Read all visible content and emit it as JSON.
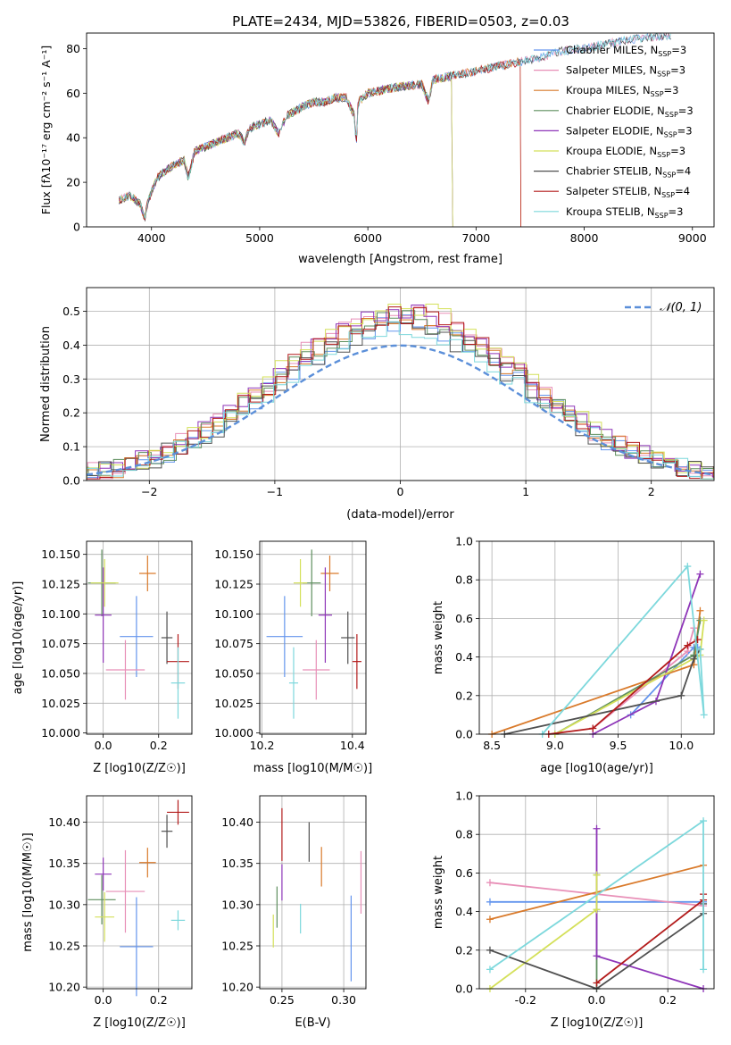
{
  "figure": {
    "title": "PLATE=2434, MJD=53826, FIBERID=0503, z=0.03"
  },
  "colors": {
    "chabrier_miles": "#6495ed",
    "salpeter_miles": "#e88fb7",
    "kroupa_miles": "#d97a2b",
    "chabrier_elodie": "#5f8f5f",
    "salpeter_elodie": "#8e35b8",
    "kroupa_elodie": "#d4e05a",
    "chabrier_stelib": "#505050",
    "salpeter_stelib": "#b31b1b",
    "kroupa_stelib": "#7dd8dc",
    "gaussian": "#5b8fd9"
  },
  "chart_data": [
    {
      "id": "spectrum",
      "type": "line",
      "xlabel": "wavelength [Angstrom, rest frame]",
      "ylabel": "Flux [f_λ10^-17 erg cm^-2 s^-1 A^-1]",
      "xlim": [
        3400,
        9200
      ],
      "ylim": [
        0,
        87
      ],
      "xticks": [
        4000,
        5000,
        6000,
        7000,
        8000,
        9000
      ],
      "yticks": [
        0,
        20,
        40,
        60,
        80
      ],
      "grid": false,
      "legend_position": "right",
      "spectrum_points": [
        [
          3700,
          12
        ],
        [
          3800,
          14
        ],
        [
          3900,
          10
        ],
        [
          3935,
          3
        ],
        [
          3970,
          12
        ],
        [
          4050,
          22
        ],
        [
          4150,
          26
        ],
        [
          4300,
          30
        ],
        [
          4340,
          22
        ],
        [
          4400,
          34
        ],
        [
          4500,
          36
        ],
        [
          4600,
          38
        ],
        [
          4700,
          40
        ],
        [
          4800,
          42
        ],
        [
          4861,
          38
        ],
        [
          4900,
          44
        ],
        [
          5000,
          46
        ],
        [
          5100,
          48
        ],
        [
          5175,
          42
        ],
        [
          5250,
          50
        ],
        [
          5400,
          54
        ],
        [
          5500,
          56
        ],
        [
          5600,
          56
        ],
        [
          5700,
          58
        ],
        [
          5800,
          58
        ],
        [
          5875,
          50
        ],
        [
          5893,
          36
        ],
        [
          5910,
          56
        ],
        [
          6000,
          60
        ],
        [
          6200,
          62
        ],
        [
          6300,
          63
        ],
        [
          6500,
          64
        ],
        [
          6563,
          56
        ],
        [
          6600,
          66
        ],
        [
          6800,
          68
        ],
        [
          7000,
          70
        ],
        [
          7200,
          72
        ],
        [
          7400,
          74
        ],
        [
          7600,
          76
        ],
        [
          7800,
          79
        ],
        [
          8000,
          80
        ],
        [
          8200,
          82
        ],
        [
          8400,
          84
        ],
        [
          8600,
          85
        ],
        [
          8800,
          86
        ]
      ],
      "series": [
        {
          "name": "Chabrier MILES, N_SSP=3",
          "color_key": "chabrier_miles",
          "end_x": 8800
        },
        {
          "name": "Salpeter MILES, N_SSP=3",
          "color_key": "salpeter_miles",
          "end_x": 8800
        },
        {
          "name": "Kroupa MILES, N_SSP=3",
          "color_key": "kroupa_miles",
          "end_x": 7410
        },
        {
          "name": "Chabrier ELODIE, N_SSP=3",
          "color_key": "chabrier_elodie",
          "end_x": 6780
        },
        {
          "name": "Salpeter ELODIE, N_SSP=3",
          "color_key": "salpeter_elodie",
          "end_x": 6780
        },
        {
          "name": "Kroupa ELODIE, N_SSP=3",
          "color_key": "kroupa_elodie",
          "end_x": 6780
        },
        {
          "name": "Chabrier STELIB, N_SSP=4",
          "color_key": "chabrier_stelib",
          "end_x": 8800
        },
        {
          "name": "Salpeter STELIB, N_SSP=4",
          "color_key": "salpeter_stelib",
          "end_x": 7410
        },
        {
          "name": "Kroupa STELIB, N_SSP=3",
          "color_key": "kroupa_stelib",
          "end_x": 8800
        }
      ]
    },
    {
      "id": "residuals",
      "type": "histogram",
      "xlabel": "(data-model)/error",
      "ylabel": "Normed distribution",
      "xlim": [
        -2.5,
        2.5
      ],
      "ylim": [
        0,
        0.57
      ],
      "xticks": [
        -2,
        -1,
        0,
        1,
        2
      ],
      "yticks": [
        0.0,
        0.1,
        0.2,
        0.3,
        0.4,
        0.5
      ],
      "grid": true,
      "legend_position": "top-right",
      "gaussian_label": "𝒩(0, 1)",
      "bin_width": 0.1,
      "histograms": [
        {
          "color_key": "chabrier_miles",
          "offset": 0.0,
          "peak": 0.46
        },
        {
          "color_key": "salpeter_miles",
          "offset": 0.03,
          "peak": 0.5
        },
        {
          "color_key": "kroupa_miles",
          "offset": -0.02,
          "peak": 0.47
        },
        {
          "color_key": "chabrier_elodie",
          "offset": 0.05,
          "peak": 0.48
        },
        {
          "color_key": "salpeter_elodie",
          "offset": -0.04,
          "peak": 0.5
        },
        {
          "color_key": "kroupa_elodie",
          "offset": 0.01,
          "peak": 0.51
        },
        {
          "color_key": "chabrier_stelib",
          "offset": -0.01,
          "peak": 0.45
        },
        {
          "color_key": "salpeter_stelib",
          "offset": 0.02,
          "peak": 0.49
        },
        {
          "color_key": "kroupa_stelib",
          "offset": -0.03,
          "peak": 0.44
        }
      ]
    },
    {
      "id": "age_vs_Z",
      "type": "scatter",
      "xlabel": "Z [log10(Z/Z☉)]",
      "ylabel": "age  [log10(age/yr)]",
      "xlim": [
        -0.06,
        0.32
      ],
      "ylim": [
        9.999,
        10.161
      ],
      "xticks": [
        0.0,
        0.2
      ],
      "yticks": [
        10.0,
        10.025,
        10.05,
        10.075,
        10.1,
        10.125,
        10.15
      ],
      "grid": true,
      "points": [
        {
          "color_key": "chabrier_miles",
          "x": 0.12,
          "y": 10.081,
          "xerr": 0.06,
          "yerr": 0.034
        },
        {
          "color_key": "salpeter_miles",
          "x": 0.08,
          "y": 10.053,
          "xerr": 0.07,
          "yerr": 0.025
        },
        {
          "color_key": "kroupa_miles",
          "x": 0.16,
          "y": 10.134,
          "xerr": 0.03,
          "yerr": 0.015
        },
        {
          "color_key": "chabrier_elodie",
          "x": -0.005,
          "y": 10.126,
          "xerr": 0.05,
          "yerr": 0.028
        },
        {
          "color_key": "salpeter_elodie",
          "x": 0.0,
          "y": 10.099,
          "xerr": 0.03,
          "yerr": 0.04
        },
        {
          "color_key": "kroupa_elodie",
          "x": 0.005,
          "y": 10.126,
          "xerr": 0.05,
          "yerr": 0.02
        },
        {
          "color_key": "chabrier_stelib",
          "x": 0.23,
          "y": 10.08,
          "xerr": 0.02,
          "yerr": 0.022
        },
        {
          "color_key": "salpeter_stelib",
          "x": 0.27,
          "y": 10.06,
          "xerr": 0.04,
          "yerr": 0.023
        },
        {
          "color_key": "kroupa_stelib",
          "x": 0.27,
          "y": 10.042,
          "xerr": 0.025,
          "yerr": 0.03
        }
      ]
    },
    {
      "id": "age_vs_mass",
      "type": "scatter",
      "xlabel": "mass [log10(M/M☉)]",
      "ylabel": "",
      "xlim": [
        10.195,
        10.43
      ],
      "ylim": [
        9.999,
        10.161
      ],
      "xticks": [
        10.2,
        10.4
      ],
      "yticks": [
        10.0,
        10.025,
        10.05,
        10.075,
        10.1,
        10.125,
        10.15
      ],
      "grid": true,
      "points": [
        {
          "color_key": "chabrier_miles",
          "x": 10.25,
          "y": 10.081,
          "xerr": 0.04,
          "yerr": 0.034
        },
        {
          "color_key": "salpeter_miles",
          "x": 10.32,
          "y": 10.053,
          "xerr": 0.03,
          "yerr": 0.025
        },
        {
          "color_key": "kroupa_miles",
          "x": 10.35,
          "y": 10.134,
          "xerr": 0.02,
          "yerr": 0.015
        },
        {
          "color_key": "chabrier_elodie",
          "x": 10.31,
          "y": 10.126,
          "xerr": 0.02,
          "yerr": 0.028
        },
        {
          "color_key": "salpeter_elodie",
          "x": 10.34,
          "y": 10.099,
          "xerr": 0.015,
          "yerr": 0.04
        },
        {
          "color_key": "kroupa_elodie",
          "x": 10.285,
          "y": 10.126,
          "xerr": 0.015,
          "yerr": 0.02
        },
        {
          "color_key": "chabrier_stelib",
          "x": 10.39,
          "y": 10.08,
          "xerr": 0.015,
          "yerr": 0.022
        },
        {
          "color_key": "salpeter_stelib",
          "x": 10.41,
          "y": 10.06,
          "xerr": 0.01,
          "yerr": 0.023
        },
        {
          "color_key": "kroupa_stelib",
          "x": 10.27,
          "y": 10.042,
          "xerr": 0.01,
          "yerr": 0.03
        }
      ]
    },
    {
      "id": "mass_vs_Z",
      "type": "scatter",
      "xlabel": "Z [log10(Z/Z☉)]",
      "ylabel": "mass [log10(M/M☉)]",
      "xlim": [
        -0.06,
        0.32
      ],
      "ylim": [
        10.198,
        10.432
      ],
      "xticks": [
        0.0,
        0.2
      ],
      "yticks": [
        10.2,
        10.25,
        10.3,
        10.35,
        10.4
      ],
      "grid": true,
      "points": [
        {
          "color_key": "chabrier_miles",
          "x": 0.12,
          "y": 10.249,
          "xerr": 0.06,
          "yerr": 0.06
        },
        {
          "color_key": "salpeter_miles",
          "x": 0.08,
          "y": 10.316,
          "xerr": 0.07,
          "yerr": 0.05
        },
        {
          "color_key": "kroupa_miles",
          "x": 0.16,
          "y": 10.351,
          "xerr": 0.03,
          "yerr": 0.018
        },
        {
          "color_key": "chabrier_elodie",
          "x": -0.005,
          "y": 10.306,
          "xerr": 0.05,
          "yerr": 0.03
        },
        {
          "color_key": "salpeter_elodie",
          "x": 0.0,
          "y": 10.337,
          "xerr": 0.03,
          "yerr": 0.02
        },
        {
          "color_key": "kroupa_elodie",
          "x": 0.005,
          "y": 10.285,
          "xerr": 0.035,
          "yerr": 0.03
        },
        {
          "color_key": "chabrier_stelib",
          "x": 0.23,
          "y": 10.389,
          "xerr": 0.02,
          "yerr": 0.02
        },
        {
          "color_key": "salpeter_stelib",
          "x": 0.27,
          "y": 10.412,
          "xerr": 0.04,
          "yerr": 0.015
        },
        {
          "color_key": "kroupa_stelib",
          "x": 0.27,
          "y": 10.281,
          "xerr": 0.025,
          "yerr": 0.012
        }
      ]
    },
    {
      "id": "mass_vs_ebv",
      "type": "scatter",
      "xlabel": "E(B-V)",
      "ylabel": "",
      "xlim": [
        0.232,
        0.318
      ],
      "ylim": [
        10.198,
        10.432
      ],
      "xticks": [
        0.25,
        0.3
      ],
      "yticks": [
        10.2,
        10.25,
        10.3,
        10.35,
        10.4
      ],
      "grid": true,
      "points": [
        {
          "color_key": "chabrier_miles",
          "x": 0.306,
          "y": 10.259,
          "xerr": 0.0,
          "yerr": 0.052
        },
        {
          "color_key": "salpeter_miles",
          "x": 0.314,
          "y": 10.327,
          "xerr": 0.0,
          "yerr": 0.038
        },
        {
          "color_key": "kroupa_miles",
          "x": 0.282,
          "y": 10.346,
          "xerr": 0.0,
          "yerr": 0.024
        },
        {
          "color_key": "chabrier_elodie",
          "x": 0.246,
          "y": 10.297,
          "xerr": 0.0,
          "yerr": 0.025
        },
        {
          "color_key": "salpeter_elodie",
          "x": 0.25,
          "y": 10.327,
          "xerr": 0.0,
          "yerr": 0.022
        },
        {
          "color_key": "kroupa_elodie",
          "x": 0.243,
          "y": 10.268,
          "xerr": 0.0,
          "yerr": 0.02
        },
        {
          "color_key": "chabrier_stelib",
          "x": 0.272,
          "y": 10.376,
          "xerr": 0.0,
          "yerr": 0.024
        },
        {
          "color_key": "salpeter_stelib",
          "x": 0.25,
          "y": 10.385,
          "xerr": 0.0,
          "yerr": 0.032
        },
        {
          "color_key": "kroupa_stelib",
          "x": 0.265,
          "y": 10.283,
          "xerr": 0.0,
          "yerr": 0.018
        }
      ]
    },
    {
      "id": "weight_vs_age",
      "type": "line",
      "xlabel": "age  [log10(age/yr)]",
      "ylabel": "mass weight",
      "xlim": [
        8.4,
        10.26
      ],
      "ylim": [
        0.0,
        1.0
      ],
      "xticks": [
        8.5,
        9.0,
        9.5,
        10.0
      ],
      "yticks": [
        0.0,
        0.2,
        0.4,
        0.6,
        0.8,
        1.0
      ],
      "grid": true,
      "series": [
        {
          "color_key": "chabrier_miles",
          "x": [
            9.6,
            10.1,
            10.13
          ],
          "y": [
            0.1,
            0.45,
            0.45
          ]
        },
        {
          "color_key": "salpeter_miles",
          "x": [
            9.3,
            10.05,
            10.1
          ],
          "y": [
            0.03,
            0.43,
            0.55
          ]
        },
        {
          "color_key": "kroupa_miles",
          "x": [
            8.5,
            10.1,
            10.15
          ],
          "y": [
            0.0,
            0.36,
            0.64
          ]
        },
        {
          "color_key": "chabrier_elodie",
          "x": [
            9.0,
            10.1,
            10.15
          ],
          "y": [
            0.0,
            0.41,
            0.59
          ]
        },
        {
          "color_key": "salpeter_elodie",
          "x": [
            9.3,
            9.8,
            10.15
          ],
          "y": [
            0.0,
            0.17,
            0.83
          ]
        },
        {
          "color_key": "kroupa_elodie",
          "x": [
            9.0,
            10.15,
            10.18
          ],
          "y": [
            0.0,
            0.41,
            0.59
          ]
        },
        {
          "color_key": "chabrier_stelib",
          "x": [
            8.6,
            10.0,
            10.1,
            10.15
          ],
          "y": [
            0.0,
            0.2,
            0.39,
            0.44
          ]
        },
        {
          "color_key": "salpeter_stelib",
          "x": [
            8.95,
            9.3,
            10.05,
            10.13
          ],
          "y": [
            0.0,
            0.03,
            0.46,
            0.49
          ]
        },
        {
          "color_key": "kroupa_stelib",
          "x": [
            8.9,
            10.05,
            10.18,
            10.15
          ],
          "y": [
            0.0,
            0.87,
            0.1,
            0.44
          ]
        }
      ]
    },
    {
      "id": "weight_vs_Z",
      "type": "line",
      "xlabel": "Z [log10(Z/Z☉)]",
      "ylabel": "mass weight",
      "xlim": [
        -0.33,
        0.33
      ],
      "ylim": [
        0.0,
        1.0
      ],
      "xticks": [
        -0.2,
        0.0,
        0.2
      ],
      "yticks": [
        0.0,
        0.2,
        0.4,
        0.6,
        0.8,
        1.0
      ],
      "grid": true,
      "series": [
        {
          "color_key": "chabrier_miles",
          "x": [
            -0.3,
            0.3
          ],
          "y": [
            0.45,
            0.45
          ]
        },
        {
          "color_key": "salpeter_miles",
          "x": [
            -0.3,
            0.3
          ],
          "y": [
            0.55,
            0.43
          ]
        },
        {
          "color_key": "kroupa_miles",
          "x": [
            -0.3,
            0.3
          ],
          "y": [
            0.36,
            0.64
          ]
        },
        {
          "color_key": "chabrier_elodie",
          "x": [
            0.0,
            0.0,
            0.0
          ],
          "y": [
            0.41,
            0.59,
            0.0
          ]
        },
        {
          "color_key": "salpeter_elodie",
          "x": [
            0.0,
            0.0,
            0.3
          ],
          "y": [
            0.83,
            0.17,
            0.0
          ]
        },
        {
          "color_key": "kroupa_elodie",
          "x": [
            -0.3,
            0.0,
            0.0
          ],
          "y": [
            0.0,
            0.41,
            0.59
          ]
        },
        {
          "color_key": "chabrier_stelib",
          "x": [
            -0.3,
            0.0,
            0.3,
            0.3
          ],
          "y": [
            0.2,
            0.0,
            0.39,
            0.44
          ]
        },
        {
          "color_key": "salpeter_stelib",
          "x": [
            0.0,
            0.3,
            0.3
          ],
          "y": [
            0.03,
            0.46,
            0.49
          ]
        },
        {
          "color_key": "kroupa_stelib",
          "x": [
            -0.3,
            0.3,
            0.3
          ],
          "y": [
            0.1,
            0.87,
            0.1
          ]
        }
      ]
    }
  ]
}
